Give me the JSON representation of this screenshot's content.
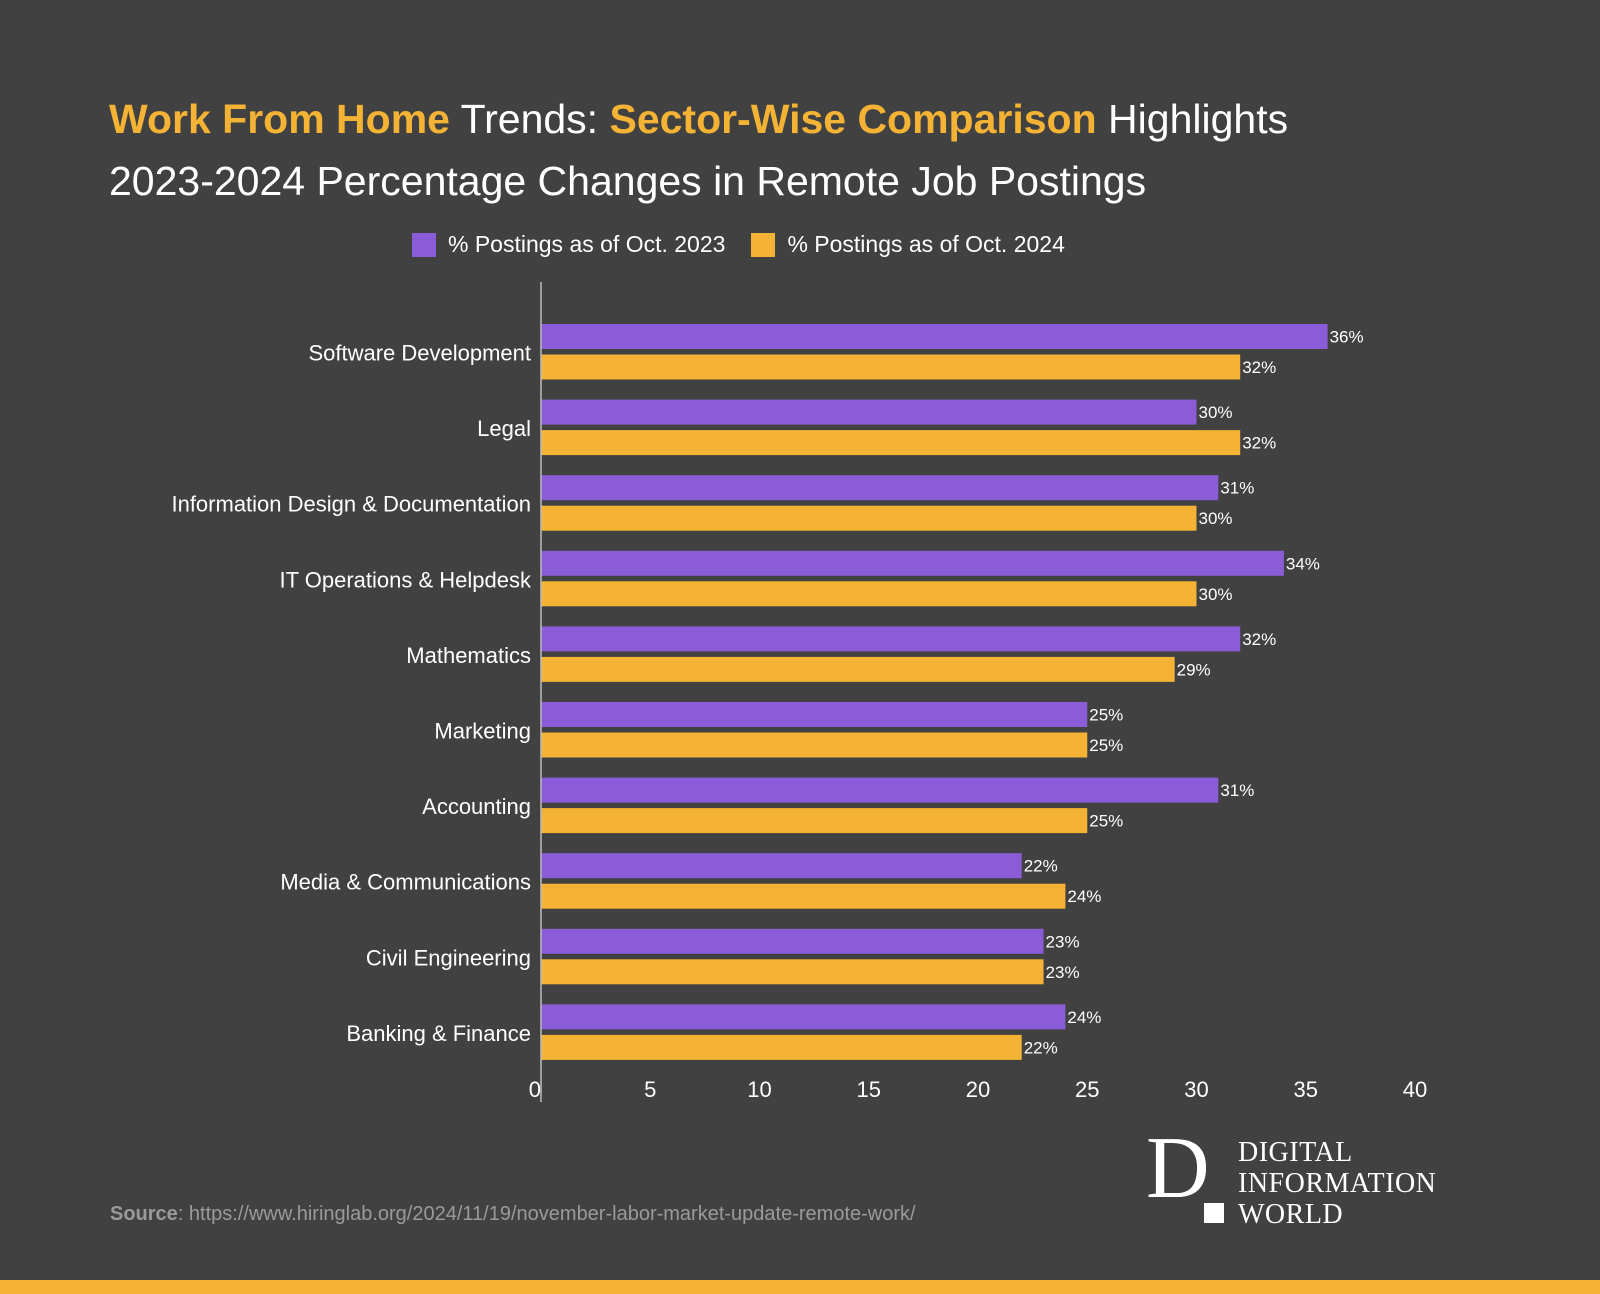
{
  "colors": {
    "background": "#414141",
    "series_2023": "#8a5cd8",
    "series_2024": "#f4b334",
    "highlight": "#f4b334",
    "text": "#ffffff",
    "source_text": "#9a9a9a"
  },
  "title": {
    "line1": {
      "part1": "Work From Home",
      "part2": " Trends: ",
      "part3": "Sector-Wise Comparison",
      "part4": " Highlights"
    },
    "line2": "2023-2024 Percentage Changes in Remote Job Postings"
  },
  "legend": {
    "series1": "% Postings as of Oct. 2023",
    "series2": "% Postings as of Oct. 2024"
  },
  "chart_data": {
    "type": "bar",
    "orientation": "horizontal",
    "title": "Work From Home Trends: Sector-Wise Comparison Highlights 2023-2024 Percentage Changes in Remote Job Postings",
    "categories": [
      "Software Development",
      "Legal",
      "Information Design & Documentation",
      "IT Operations & Helpdesk",
      "Mathematics",
      "Marketing",
      "Accounting",
      "Media & Communications",
      "Civil Engineering",
      "Banking & Finance"
    ],
    "series": [
      {
        "name": "% Postings as of Oct. 2023",
        "values": [
          36,
          30,
          31,
          34,
          32,
          25,
          31,
          22,
          23,
          24
        ],
        "labels": [
          "36%",
          "30%",
          "31%",
          "34%",
          "32%",
          "25%",
          "31%",
          "22%",
          "23%",
          "24%"
        ]
      },
      {
        "name": "% Postings as of Oct. 2024",
        "values": [
          32,
          32,
          30,
          30,
          29,
          25,
          25,
          24,
          23,
          22
        ],
        "labels": [
          "32%",
          "32%",
          "30%",
          "30%",
          "29%",
          "25%",
          "25%",
          "24%",
          "23%",
          "22%"
        ]
      }
    ],
    "xlim": [
      0,
      40
    ],
    "xticks": [
      0,
      5,
      10,
      15,
      20,
      25,
      30,
      35,
      40
    ],
    "xtick_labels": [
      "0",
      "5",
      "10",
      "15",
      "20",
      "25",
      "30",
      "35",
      "40"
    ],
    "xlabel": "",
    "ylabel": "",
    "grid": false,
    "legend_position": "top-center"
  },
  "source": {
    "label": "Source",
    "text": ": https://www.hiringlab.org/2024/11/19/november-labor-market-update-remote-work/"
  },
  "logo": {
    "letter": "D",
    "line1": "DIGITAL",
    "line2": "INFORMATION",
    "line3": "WORLD"
  }
}
